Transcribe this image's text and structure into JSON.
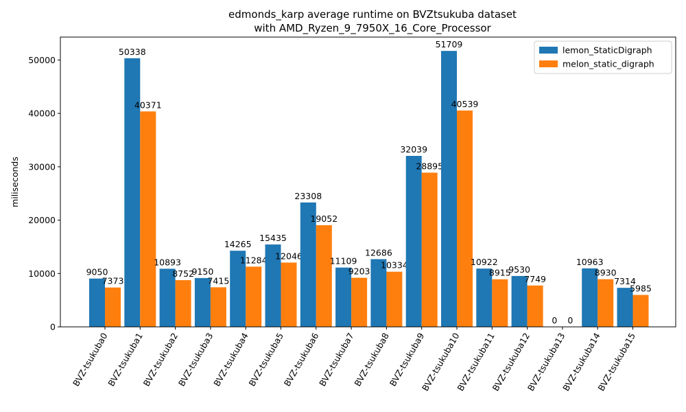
{
  "chart_data": {
    "type": "bar",
    "title": [
      "edmonds_karp average runtime on BVZtsukuba dataset",
      "with AMD_Ryzen_9_7950X_16_Core_Processor"
    ],
    "xlabel": "",
    "ylabel": "miliseconds",
    "ylim": [
      0,
      54300
    ],
    "yticks": [
      0,
      10000,
      20000,
      30000,
      40000,
      50000
    ],
    "grid": false,
    "legend_position": "top-right",
    "categories": [
      "BVZ-tsukuba0",
      "BVZ-tsukuba1",
      "BVZ-tsukuba2",
      "BVZ-tsukuba3",
      "BVZ-tsukuba4",
      "BVZ-tsukuba5",
      "BVZ-tsukuba6",
      "BVZ-tsukuba7",
      "BVZ-tsukuba8",
      "BVZ-tsukuba9",
      "BVZ-tsukuba10",
      "BVZ-tsukuba11",
      "BVZ-tsukuba12",
      "BVZ-tsukuba13",
      "BVZ-tsukuba14",
      "BVZ-tsukuba15"
    ],
    "series": [
      {
        "name": "lemon_StaticDigraph",
        "color": "#1f77b4",
        "values": [
          9050,
          50338,
          10893,
          9150,
          14265,
          15435,
          23308,
          11109,
          12686,
          32039,
          51709,
          10922,
          9530,
          0,
          10963,
          7314
        ]
      },
      {
        "name": "melon_static_digraph",
        "color": "#ff7f0e",
        "values": [
          7373,
          40371,
          8752,
          7415,
          11284,
          12046,
          19052,
          9203,
          10334,
          28895,
          40539,
          8915,
          7749,
          0,
          8930,
          5985
        ]
      }
    ]
  }
}
